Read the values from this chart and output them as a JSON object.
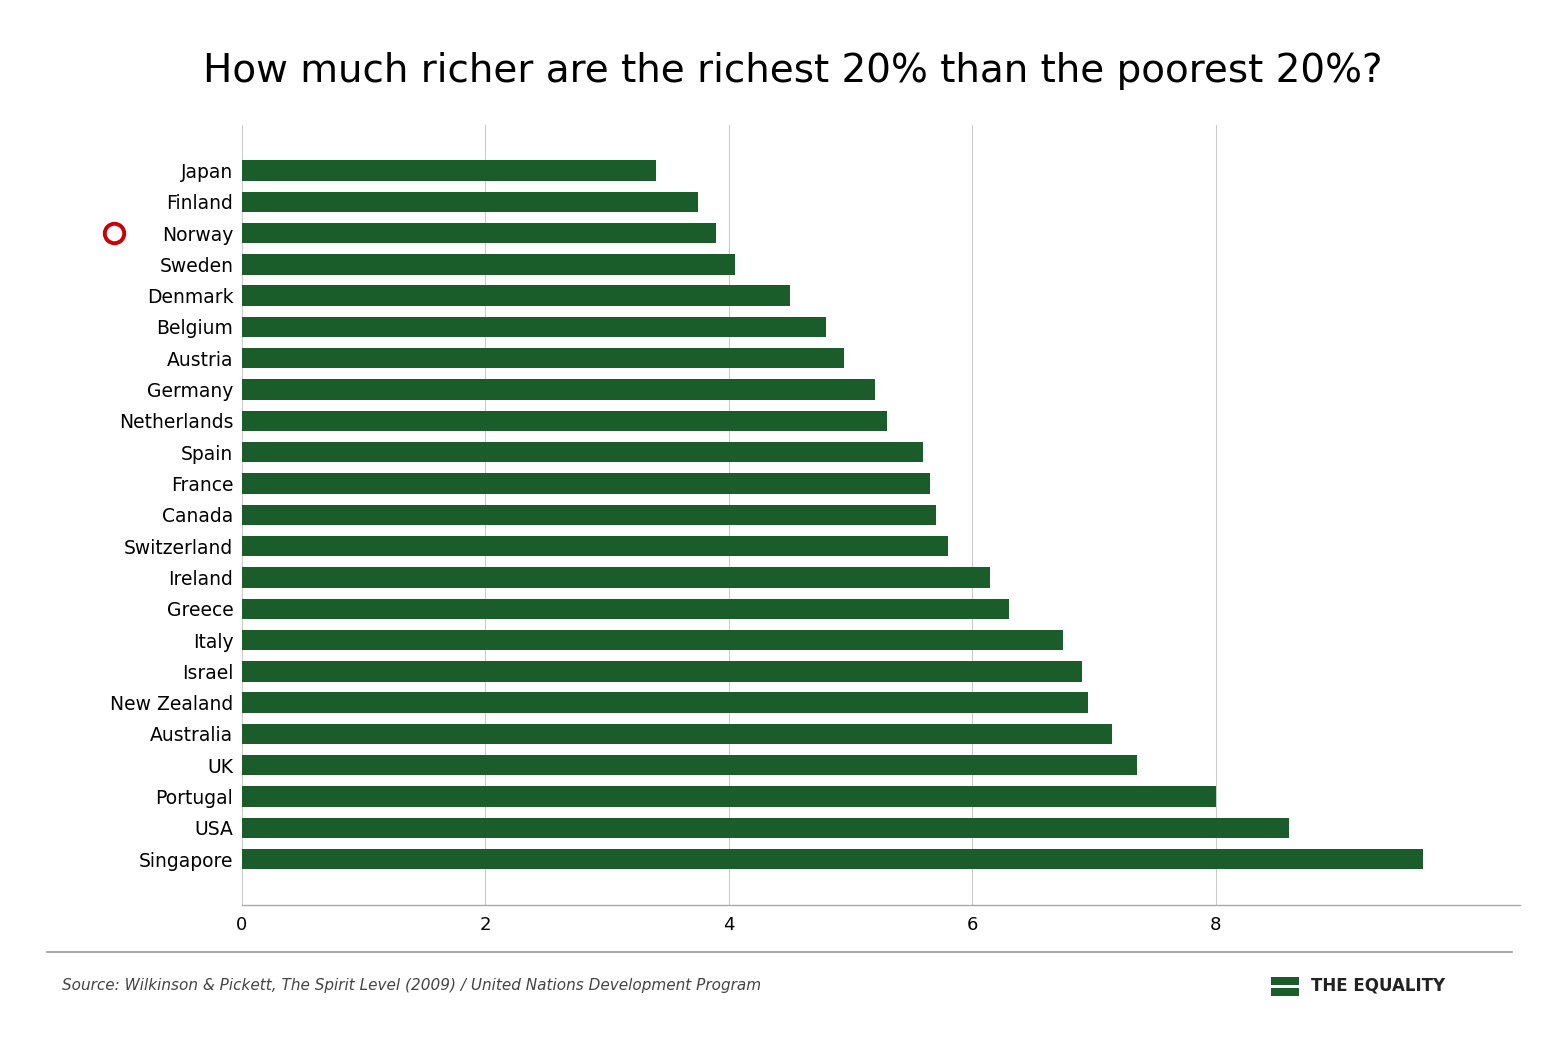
{
  "title": "How much richer are the richest 20% than the poorest 20%?",
  "countries": [
    "Japan",
    "Finland",
    "Norway",
    "Sweden",
    "Denmark",
    "Belgium",
    "Austria",
    "Germany",
    "Netherlands",
    "Spain",
    "France",
    "Canada",
    "Switzerland",
    "Ireland",
    "Greece",
    "Italy",
    "Israel",
    "New Zealand",
    "Australia",
    "UK",
    "Portugal",
    "USA",
    "Singapore"
  ],
  "values": [
    3.4,
    3.75,
    3.9,
    4.05,
    4.5,
    4.8,
    4.95,
    5.2,
    5.3,
    5.6,
    5.65,
    5.7,
    5.8,
    6.15,
    6.3,
    6.75,
    6.9,
    6.95,
    7.15,
    7.35,
    8.0,
    8.6,
    9.7
  ],
  "bar_color": "#1a5c2a",
  "background_color": "#ffffff",
  "norway_marker_color": "#cc0000",
  "source_text": "Source: Wilkinson & Pickett, The Spirit Level (2009) / United Nations Development Program",
  "logo_text": "THE EQUALITY",
  "xlim": [
    0,
    10.5
  ],
  "xticks": [
    0,
    2,
    4,
    6,
    8
  ],
  "title_fontsize": 28,
  "label_fontsize": 13.5,
  "tick_fontsize": 13,
  "source_fontsize": 11
}
